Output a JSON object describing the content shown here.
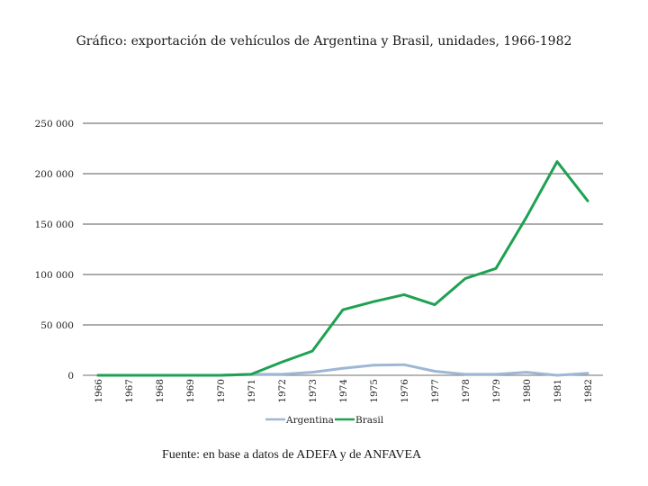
{
  "chart_data": {
    "type": "line",
    "title": "Gráfico: exportación de vehículos de Argentina y Brasil, unidades, 1966-1982",
    "x": [
      "1966",
      "1967",
      "1968",
      "1969",
      "1970",
      "1971",
      "1972",
      "1973",
      "1974",
      "1975",
      "1976",
      "1977",
      "1978",
      "1979",
      "1980",
      "1981",
      "1982"
    ],
    "ylim": [
      0,
      250000
    ],
    "yticks": [
      0,
      50000,
      100000,
      150000,
      200000,
      250000
    ],
    "ytick_labels": [
      "0",
      "50 000",
      "100 000",
      "150 000",
      "200 000",
      "250 000"
    ],
    "grid": true,
    "legend_position": "bottom",
    "series": [
      {
        "name": "Argentina",
        "color": "#9db7d5",
        "values": [
          0,
          0,
          0,
          0,
          0,
          1000,
          1000,
          3000,
          7000,
          10000,
          10500,
          4000,
          1000,
          1000,
          3000,
          0,
          2000
        ]
      },
      {
        "name": "Brasil",
        "color": "#1ea152",
        "values": [
          0,
          0,
          0,
          0,
          0,
          1000,
          13000,
          24000,
          65000,
          73000,
          80000,
          70000,
          96000,
          106000,
          157000,
          212000,
          173000
        ]
      }
    ]
  },
  "source_note": "Fuente: en base a datos de ADEFA y de ANFAVEA"
}
